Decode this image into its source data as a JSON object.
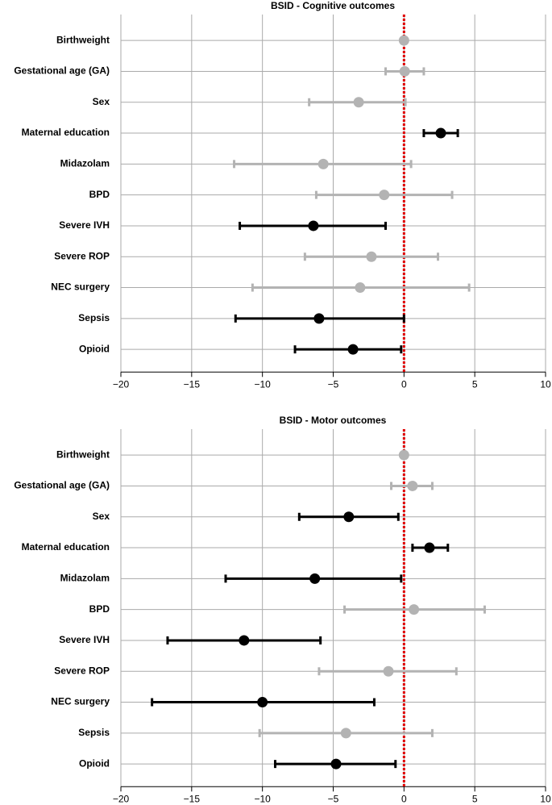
{
  "chart_data": [
    {
      "type": "forest",
      "title": "BSID - Cognitive outcomes",
      "categories": [
        "Birthweight",
        "Gestational age (GA)",
        "Sex",
        "Maternal education",
        "Midazolam",
        "BPD",
        "Severe IVH",
        "Severe ROP",
        "NEC surgery",
        "Sepsis",
        "Opioid"
      ],
      "values": [
        0,
        0.05,
        -3.2,
        2.6,
        -5.7,
        -1.4,
        -6.4,
        -2.3,
        -3.1,
        -6.0,
        -3.6
      ],
      "lower": [
        -0.1,
        -1.3,
        -6.7,
        1.4,
        -12.0,
        -6.2,
        -11.6,
        -7.0,
        -10.7,
        -11.9,
        -7.7
      ],
      "upper": [
        0.1,
        1.4,
        0.1,
        3.8,
        0.5,
        3.4,
        -1.3,
        2.4,
        4.6,
        0.0,
        -0.2
      ],
      "colors": [
        "#b3b3b3",
        "#b3b3b3",
        "#b3b3b3",
        "#000000",
        "#b3b3b3",
        "#b3b3b3",
        "#000000",
        "#b3b3b3",
        "#b3b3b3",
        "#000000",
        "#000000"
      ],
      "xlim": [
        -20,
        10
      ],
      "xticks": [
        {
          "value": -20,
          "label": "−20"
        },
        {
          "value": -15,
          "label": "−15"
        },
        {
          "value": -10,
          "label": "−10"
        },
        {
          "value": -5,
          "label": "−5"
        },
        0,
        5,
        10
      ],
      "grid": true,
      "reference_line": {
        "value": 0,
        "color": "#e00000"
      }
    },
    {
      "type": "forest",
      "title": "BSID - Motor outcomes",
      "categories": [
        "Birthweight",
        "Gestational age (GA)",
        "Sex",
        "Maternal education",
        "Midazolam",
        "BPD",
        "Severe IVH",
        "Severe ROP",
        "NEC surgery",
        "Sepsis",
        "Opioid"
      ],
      "values": [
        0,
        0.6,
        -3.9,
        1.8,
        -6.3,
        0.7,
        -11.3,
        -1.1,
        -10.0,
        -4.1,
        -4.8
      ],
      "lower": [
        -0.1,
        -0.9,
        -7.4,
        0.6,
        -12.6,
        -4.2,
        -16.7,
        -6.0,
        -17.8,
        -10.2,
        -9.1
      ],
      "upper": [
        0.1,
        2.0,
        -0.4,
        3.1,
        -0.2,
        5.7,
        -5.9,
        3.7,
        -2.1,
        2.0,
        -0.6
      ],
      "colors": [
        "#b3b3b3",
        "#b3b3b3",
        "#000000",
        "#000000",
        "#000000",
        "#b3b3b3",
        "#000000",
        "#b3b3b3",
        "#000000",
        "#b3b3b3",
        "#000000"
      ],
      "xlim": [
        -20,
        10
      ],
      "xticks": [
        {
          "value": -20,
          "label": "−20"
        },
        {
          "value": -15,
          "label": "−15"
        },
        {
          "value": -10,
          "label": "−10"
        },
        {
          "value": -5,
          "label": "−5"
        },
        0,
        5,
        10
      ],
      "grid": true,
      "reference_line": {
        "value": 0,
        "color": "#e00000"
      }
    }
  ]
}
